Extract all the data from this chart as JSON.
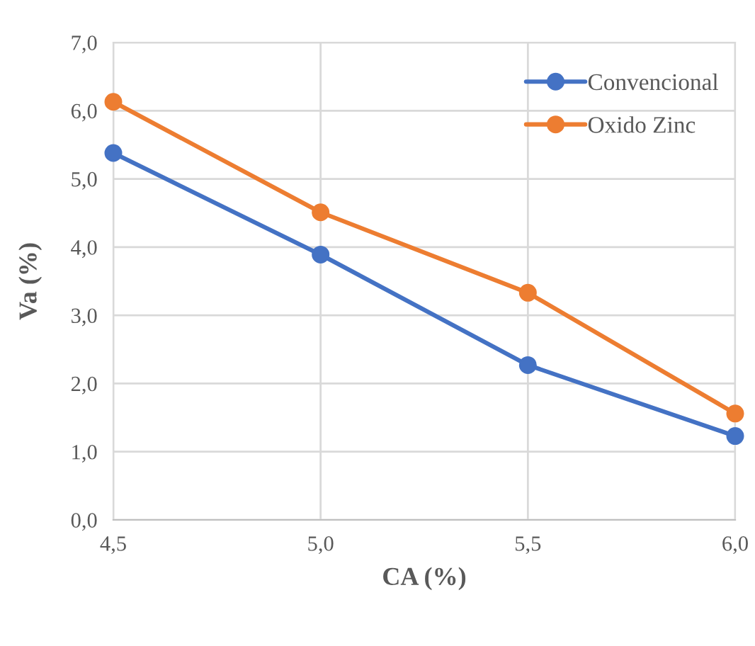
{
  "chart_data": {
    "type": "line",
    "xlabel": "CA (%)",
    "ylabel": "Va (%)",
    "x": [
      4.5,
      5.0,
      5.5,
      6.0
    ],
    "series": [
      {
        "name": "Convencional",
        "color": "#4472c4",
        "values": [
          5.38,
          3.89,
          2.27,
          1.23
        ]
      },
      {
        "name": "Oxido Zinc",
        "color": "#ed7d31",
        "values": [
          6.13,
          4.51,
          3.33,
          1.56
        ]
      }
    ],
    "xlim": [
      4.5,
      6.0
    ],
    "xticks": [
      {
        "value": 4.5,
        "label": "4,5"
      },
      {
        "value": 5.0,
        "label": "5,0"
      },
      {
        "value": 5.5,
        "label": "5,5"
      },
      {
        "value": 6.0,
        "label": "6,0"
      }
    ],
    "ylim": [
      0,
      7
    ],
    "yticks": [
      {
        "value": 0,
        "label": "0,0"
      },
      {
        "value": 1,
        "label": "1,0"
      },
      {
        "value": 2,
        "label": "2,0"
      },
      {
        "value": 3,
        "label": "3,0"
      },
      {
        "value": 4,
        "label": "4,0"
      },
      {
        "value": 5,
        "label": "5,0"
      },
      {
        "value": 6,
        "label": "6,0"
      },
      {
        "value": 7,
        "label": "7,0"
      }
    ],
    "grid": true,
    "legend": "top right",
    "marker": "circle",
    "line_style": "solid"
  }
}
